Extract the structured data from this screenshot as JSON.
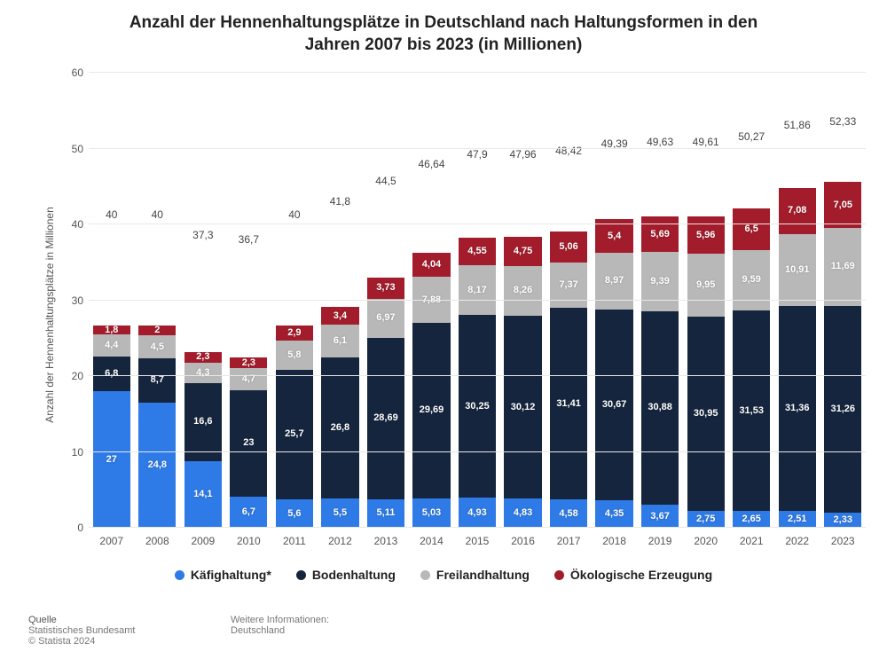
{
  "title_line1": "Anzahl der Hennenhaltungsplätze in Deutschland nach Haltungsformen in den",
  "title_line2": "Jahren 2007 bis 2023 (in Millionen)",
  "title_fontsize": 19,
  "y_axis_title": "Anzahl der Hennenhaltungsplätze in Millionen",
  "chart": {
    "type": "stacked-bar",
    "ylim": [
      0,
      60
    ],
    "ytick_step": 10,
    "yticks": [
      0,
      10,
      20,
      30,
      40,
      50,
      60
    ],
    "grid_color": "#e8e8e8",
    "background_color": "#ffffff",
    "label_fontsize": 12,
    "value_label_fontsize": 11,
    "value_label_color": "#ffffff",
    "total_label_color": "#444444",
    "axis_color": "#c0c0c0",
    "bar_width": 0.82,
    "series": [
      {
        "key": "kaefig",
        "label": "Käfighaltung*",
        "color": "#2e7ae6"
      },
      {
        "key": "boden",
        "label": "Bodenhaltung",
        "color": "#15253d"
      },
      {
        "key": "freiland",
        "label": "Freilandhaltung",
        "color": "#b8b8b8"
      },
      {
        "key": "oeko",
        "label": "Ökologische Erzeugung",
        "color": "#a31c2b"
      }
    ],
    "years": [
      "2007",
      "2008",
      "2009",
      "2010",
      "2011",
      "2012",
      "2013",
      "2014",
      "2015",
      "2016",
      "2017",
      "2018",
      "2019",
      "2020",
      "2021",
      "2022",
      "2023"
    ],
    "data": {
      "kaefig": [
        27,
        24.8,
        14.1,
        6.7,
        5.6,
        5.5,
        5.11,
        5.03,
        4.93,
        4.83,
        4.58,
        4.35,
        3.67,
        2.75,
        2.65,
        2.51,
        2.33
      ],
      "boden": [
        6.8,
        8.7,
        16.6,
        23,
        25.7,
        26.8,
        28.69,
        29.69,
        30.25,
        30.12,
        31.41,
        30.67,
        30.88,
        30.95,
        31.53,
        31.36,
        31.26
      ],
      "freiland": [
        4.4,
        4.5,
        4.3,
        4.7,
        5.8,
        6.1,
        6.97,
        7.88,
        8.17,
        8.26,
        7.37,
        8.97,
        9.39,
        9.95,
        9.59,
        10.91,
        11.69
      ],
      "oeko": [
        1.8,
        2,
        2.3,
        2.3,
        2.9,
        3.4,
        3.73,
        4.04,
        4.55,
        4.75,
        5.06,
        5.4,
        5.69,
        5.96,
        6.5,
        7.08,
        7.05
      ]
    },
    "labels": {
      "kaefig": [
        "27",
        "24,8",
        "14,1",
        "6,7",
        "5,6",
        "5,5",
        "5,11",
        "5,03",
        "4,93",
        "4,83",
        "4,58",
        "4,35",
        "3,67",
        "2,75",
        "2,65",
        "2,51",
        "2,33"
      ],
      "boden": [
        "6,8",
        "8,7",
        "16,6",
        "23",
        "25,7",
        "26,8",
        "28,69",
        "29,69",
        "30,25",
        "30,12",
        "31,41",
        "30,67",
        "30,88",
        "30,95",
        "31,53",
        "31,36",
        "31,26"
      ],
      "freiland": [
        "4,4",
        "4,5",
        "4,3",
        "4,7",
        "5,8",
        "6,1",
        "6,97",
        "7,88",
        "8,17",
        "8,26",
        "7,37",
        "8,97",
        "9,39",
        "9,95",
        "9,59",
        "10,91",
        "11,69"
      ],
      "oeko": [
        "1,8",
        "2",
        "2,3",
        "2,3",
        "2,9",
        "3,4",
        "3,73",
        "4,04",
        "4,55",
        "4,75",
        "5,06",
        "5,4",
        "5,69",
        "5,96",
        "6,5",
        "7,08",
        "7,05"
      ]
    },
    "totals": [
      "40",
      "40",
      "37,3",
      "36,7",
      "40",
      "41,8",
      "44,5",
      "46,64",
      "47,9",
      "47,96",
      "48,42",
      "49,39",
      "49,63",
      "49,61",
      "50,27",
      "51,86",
      "52,33"
    ]
  },
  "legend_fontsize": 14,
  "footer": {
    "source_heading": "Quelle",
    "source_line1": "Statistisches Bundesamt",
    "source_line2": "© Statista 2024",
    "more_heading": "Weitere Informationen:",
    "more_line1": "Deutschland"
  }
}
